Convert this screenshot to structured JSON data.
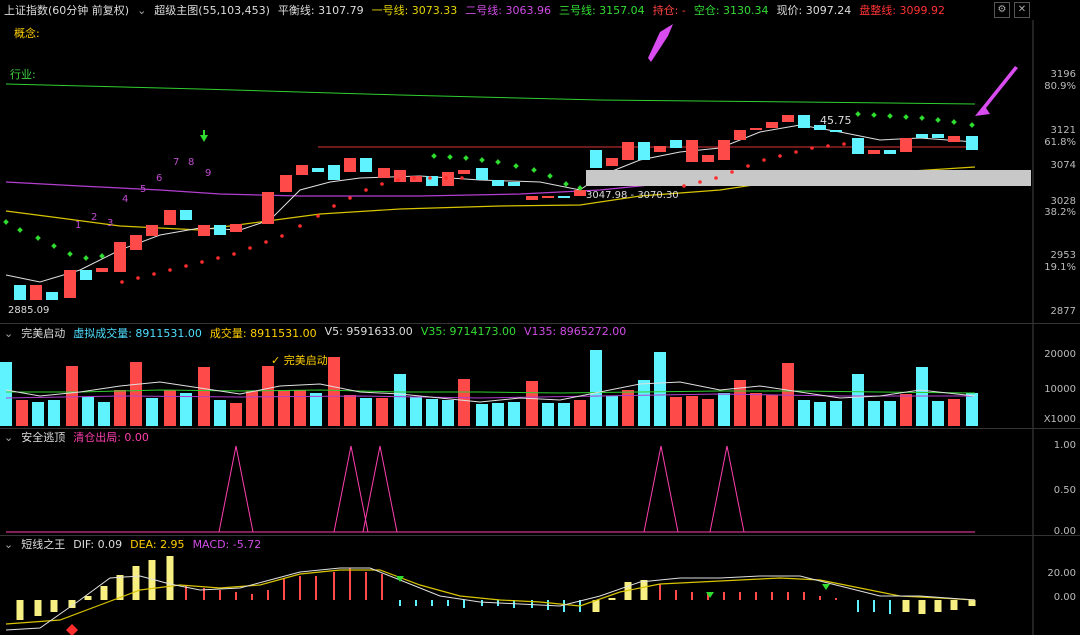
{
  "header": {
    "close_icon": "close-x-icon",
    "index_name": "上证指数(60分钟 前复权)",
    "indicator_name": "超级主图(55,103,453)",
    "items": [
      {
        "label": "平衡线:",
        "value": "3107.79",
        "color": "#dddddd"
      },
      {
        "label": "一号线:",
        "value": "3073.33",
        "color": "#e5d400"
      },
      {
        "label": "二号线:",
        "value": "3063.96",
        "color": "#d14ce6"
      },
      {
        "label": "三号线:",
        "value": "3157.04",
        "color": "#33dd33"
      },
      {
        "label": "持仓:",
        "value": "-",
        "color": "#ff4444"
      },
      {
        "label": "空仓:",
        "value": "3130.34",
        "color": "#33dd33"
      },
      {
        "label": "现价:",
        "value": "3097.24",
        "color": "#dddddd"
      },
      {
        "label": "盘整线:",
        "value": "3099.92",
        "color": "#ff3333"
      }
    ],
    "window_controls": [
      "gear-icon",
      "close-icon"
    ]
  },
  "main": {
    "concept_label": "概念:",
    "industry_label": "行业:",
    "low_label": "2885.09",
    "high_label": "45.75",
    "range_label": "3047.98 - 3070.30",
    "wave_numbers": [
      "1",
      "2",
      "3",
      "4",
      "5",
      "6",
      "7",
      "8",
      "9"
    ],
    "axis": [
      {
        "text": "3196",
        "color": "#bbbbbb"
      },
      {
        "text": "80.9%",
        "color": "#bbbbbb"
      },
      {
        "text": "3121",
        "color": "#bbbbbb"
      },
      {
        "text": "61.8%",
        "color": "#bbbbbb"
      },
      {
        "text": "3074",
        "color": "#bbbbbb"
      },
      {
        "text": "3028",
        "color": "#bbbbbb"
      },
      {
        "text": "38.2%",
        "color": "#bbbbbb"
      },
      {
        "text": "2953",
        "color": "#bbbbbb"
      },
      {
        "text": "19.1%",
        "color": "#bbbbbb"
      },
      {
        "text": "2877",
        "color": "#bbbbbb"
      }
    ]
  },
  "volume_panel": {
    "name": "完美启动",
    "items": [
      {
        "label": "虚拟成交量:",
        "value": "8911531.00",
        "color": "#4fe0ff"
      },
      {
        "label": "成交量:",
        "value": "8911531.00",
        "color": "#ffd000"
      },
      {
        "label": "V5:",
        "value": "9591633.00",
        "color": "#dddddd"
      },
      {
        "label": "V35:",
        "value": "9714173.00",
        "color": "#33dd33"
      },
      {
        "label": "V135:",
        "value": "8965272.00",
        "color": "#d14ce6"
      }
    ],
    "signal": "✓ 完美启动",
    "axis": [
      "20000",
      "10000",
      "X1000"
    ]
  },
  "escape_panel": {
    "name": "安全逃顶",
    "items": [
      {
        "label": "清仓出局:",
        "value": "0.00",
        "color": "#ff3fae"
      }
    ],
    "axis": [
      "1.00",
      "0.50",
      "0.00"
    ]
  },
  "macd_panel": {
    "name": "短线之王",
    "items": [
      {
        "label": "DIF:",
        "value": "0.09",
        "color": "#dddddd"
      },
      {
        "label": "DEA:",
        "value": "2.95",
        "color": "#ffd000"
      },
      {
        "label": "MACD:",
        "value": "-5.72",
        "color": "#d14ce6"
      }
    ],
    "axis": [
      "20.00",
      "0.00"
    ]
  }
}
